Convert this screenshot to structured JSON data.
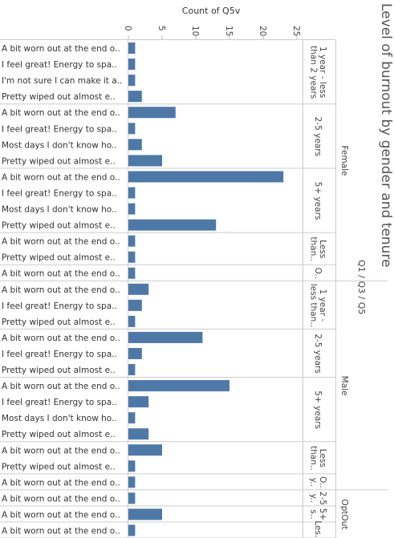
{
  "chart_data": {
    "type": "bar",
    "orientation": "horizontal",
    "title": "Level of burnout by gender and tenure",
    "subtitle": "Q1 / Q3 / Q5",
    "xlabel": "Count of Q5v",
    "xticks": [
      "0",
      "5",
      "10",
      "15",
      "20",
      "25"
    ],
    "xlim": [
      0,
      25
    ],
    "bar_color": "#4e79a7",
    "groups": [
      {
        "gender": "Female",
        "tenure": "1 year - less than 2 years",
        "tenure_lines": [
          "1 year - less",
          "than 2 years"
        ],
        "rows": [
          {
            "label": "A bit worn out at the end o..",
            "value": 1
          },
          {
            "label": "I feel great! Energy to spa..",
            "value": 1
          },
          {
            "label": "I'm not sure I can make it a..",
            "value": 1
          },
          {
            "label": "Pretty wiped out almost e..",
            "value": 2
          }
        ]
      },
      {
        "gender": "Female",
        "tenure": "2-5 years",
        "tenure_lines": [
          "2-5 years"
        ],
        "rows": [
          {
            "label": "A bit worn out at the end o..",
            "value": 7
          },
          {
            "label": "I feel great! Energy to spa..",
            "value": 1
          },
          {
            "label": "Most days I don't know ho..",
            "value": 2
          },
          {
            "label": "Pretty wiped out almost e..",
            "value": 5
          }
        ]
      },
      {
        "gender": "Female",
        "tenure": "5+ years",
        "tenure_lines": [
          "5+ years"
        ],
        "rows": [
          {
            "label": "A bit worn out at the end o..",
            "value": 23
          },
          {
            "label": "I feel great! Energy to spa..",
            "value": 1
          },
          {
            "label": "Most days I don't know ho..",
            "value": 1
          },
          {
            "label": "Pretty wiped out almost e..",
            "value": 13
          }
        ]
      },
      {
        "gender": "Female",
        "tenure": "Less than..",
        "tenure_lines": [
          "Less",
          "than.."
        ],
        "rows": [
          {
            "label": "A bit worn out at the end o..",
            "value": 1
          },
          {
            "label": "Pretty wiped out almost e..",
            "value": 1
          }
        ]
      },
      {
        "gender": "Female",
        "tenure": "O..",
        "tenure_lines": [
          "O.."
        ],
        "rows": [
          {
            "label": "A bit worn out at the end o..",
            "value": 1
          }
        ]
      },
      {
        "gender": "Male",
        "tenure": "1 year - less than..",
        "tenure_lines": [
          "1 year -",
          "less than.."
        ],
        "rows": [
          {
            "label": "A bit worn out at the end o..",
            "value": 3
          },
          {
            "label": "I feel great! Energy to spa..",
            "value": 2
          },
          {
            "label": "Pretty wiped out almost e..",
            "value": 1
          }
        ]
      },
      {
        "gender": "Male",
        "tenure": "2-5 years",
        "tenure_lines": [
          "2-5 years"
        ],
        "rows": [
          {
            "label": "A bit worn out at the end o..",
            "value": 11
          },
          {
            "label": "I feel great! Energy to spa..",
            "value": 2
          },
          {
            "label": "Pretty wiped out almost e..",
            "value": 1
          }
        ]
      },
      {
        "gender": "Male",
        "tenure": "5+ years",
        "tenure_lines": [
          "5+ years"
        ],
        "rows": [
          {
            "label": "A bit worn out at the end o..",
            "value": 15
          },
          {
            "label": "I feel great! Energy to spa..",
            "value": 3
          },
          {
            "label": "Most days I don't know ho..",
            "value": 1
          },
          {
            "label": "Pretty wiped out almost e..",
            "value": 3
          }
        ]
      },
      {
        "gender": "Male",
        "tenure": "Less than..",
        "tenure_lines": [
          "Less",
          "than.."
        ],
        "rows": [
          {
            "label": "A bit worn out at the end o..",
            "value": 5
          },
          {
            "label": "Pretty wiped out almost e..",
            "value": 1
          }
        ]
      },
      {
        "gender": "Male",
        "tenure": "O.. y..",
        "tenure_lines": [
          "O..",
          "y.."
        ],
        "rows": [
          {
            "label": "A bit worn out at the end o..",
            "value": 1
          }
        ]
      },
      {
        "gender": "OptOut",
        "tenure": "2-5 y..",
        "tenure_lines": [
          "2-5",
          "y.."
        ],
        "rows": [
          {
            "label": "A bit worn out at the end o..",
            "value": 1
          }
        ]
      },
      {
        "gender": "OptOut",
        "tenure": "5+ s..",
        "tenure_lines": [
          "5+",
          "s.."
        ],
        "rows": [
          {
            "label": "A bit worn out at the end o..",
            "value": 5
          }
        ]
      },
      {
        "gender": "OptOut",
        "tenure": "Les..",
        "tenure_lines": [
          "Les.."
        ],
        "rows": [
          {
            "label": "A bit worn out at the end o..",
            "value": 1
          }
        ]
      }
    ]
  }
}
